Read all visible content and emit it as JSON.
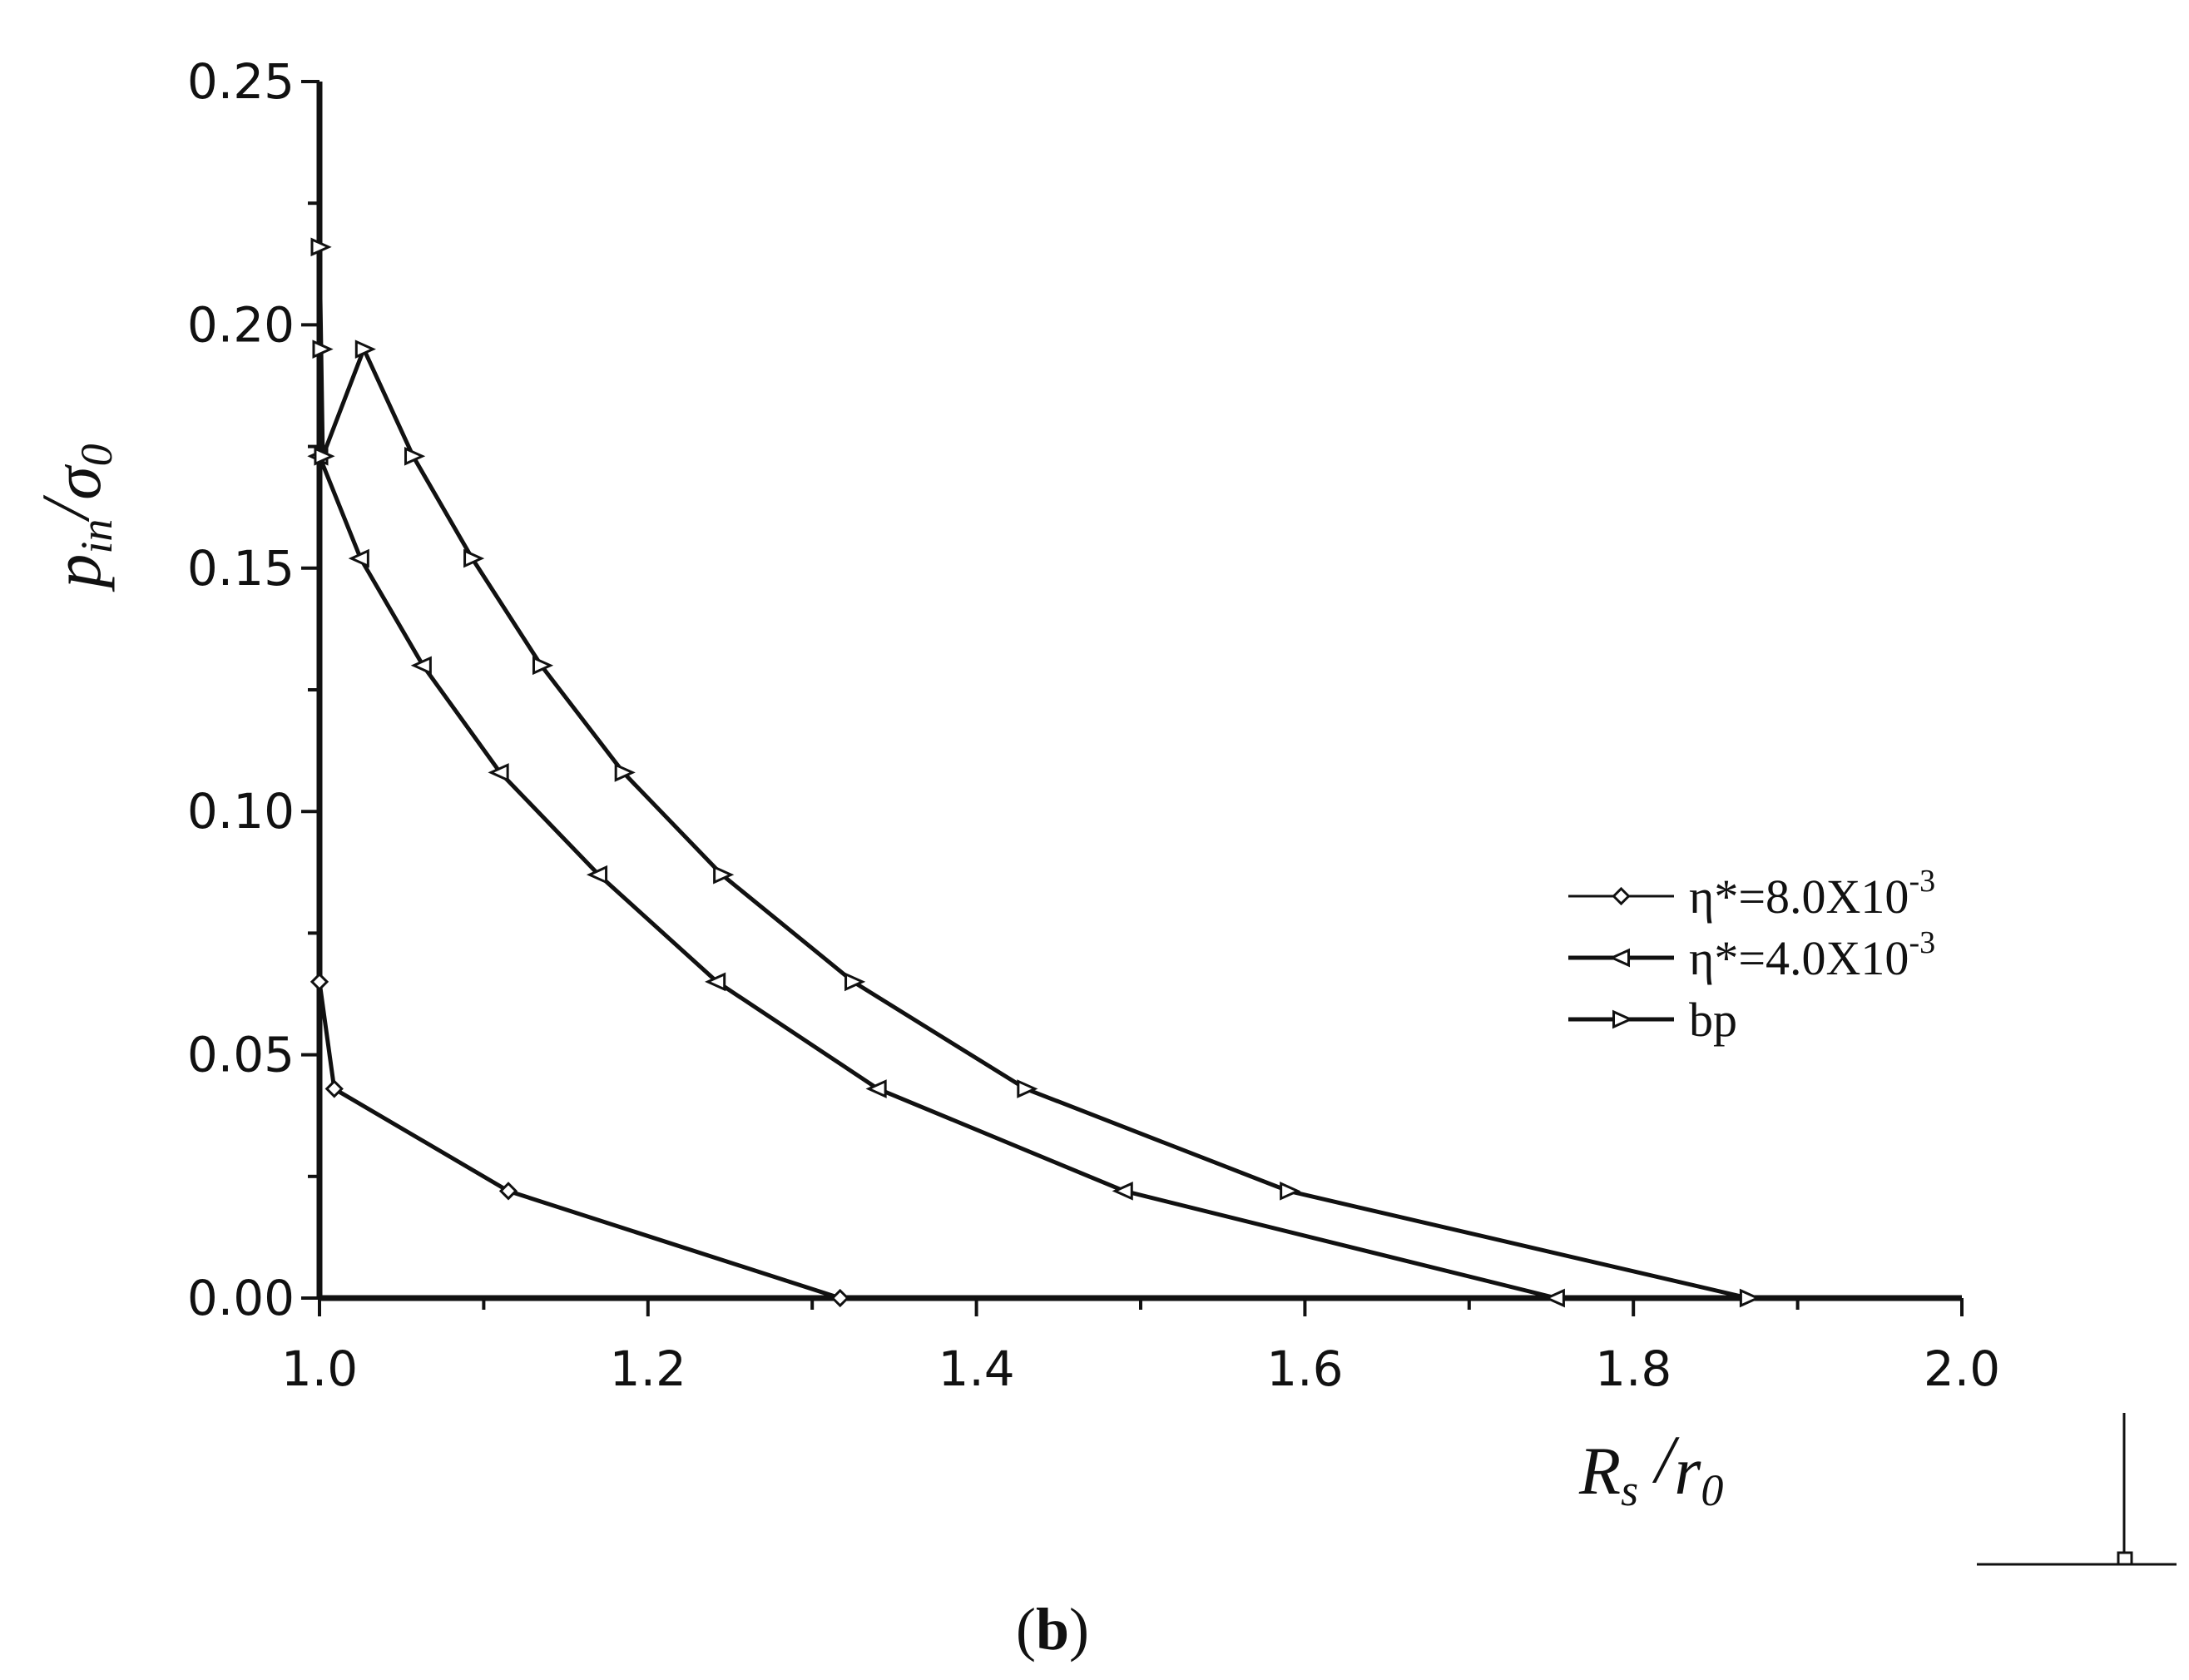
{
  "chart_data": {
    "type": "line",
    "caption": "(b)",
    "xlabel": {
      "main": "R",
      "main_sub": "s",
      "sep": " /",
      "den": "r",
      "den_sub": "0"
    },
    "ylabel": {
      "main": "p",
      "main_sub": "in",
      "sep": "/",
      "den": "σ",
      "den_sub": "0"
    },
    "xlim": [
      1.0,
      2.0
    ],
    "ylim": [
      0.0,
      0.25
    ],
    "x_ticks": [
      "1.0",
      "1.2",
      "1.4",
      "1.6",
      "1.8",
      "2.0"
    ],
    "y_ticks": [
      "0.00",
      "0.05",
      "0.10",
      "0.15",
      "0.20",
      "0.25"
    ],
    "grid": false,
    "legend_position": "right",
    "series": [
      {
        "name": "η*=8.0X10",
        "name_exp": "-3",
        "marker": "diamond",
        "points": [
          [
            1.0,
            0.065
          ],
          [
            1.009,
            0.043
          ],
          [
            1.115,
            0.022
          ],
          [
            1.317,
            0.0
          ]
        ]
      },
      {
        "name": "η*=4.0X10",
        "name_exp": "-3",
        "marker": "triangle-left",
        "points": [
          [
            1.0,
            0.173
          ],
          [
            1.025,
            0.152
          ],
          [
            1.063,
            0.13
          ],
          [
            1.11,
            0.108
          ],
          [
            1.17,
            0.087
          ],
          [
            1.242,
            0.065
          ],
          [
            1.34,
            0.043
          ],
          [
            1.49,
            0.022
          ],
          [
            1.753,
            0.0
          ]
        ]
      },
      {
        "name": "bp",
        "name_exp": "",
        "marker": "triangle-right",
        "points": [
          [
            1.0,
            0.216
          ],
          [
            1.001,
            0.195
          ],
          [
            1.002,
            0.173
          ],
          [
            1.027,
            0.195
          ],
          [
            1.057,
            0.173
          ],
          [
            1.093,
            0.152
          ],
          [
            1.135,
            0.13
          ],
          [
            1.185,
            0.108
          ],
          [
            1.245,
            0.087
          ],
          [
            1.325,
            0.065
          ],
          [
            1.43,
            0.043
          ],
          [
            1.59,
            0.022
          ],
          [
            1.87,
            0.0
          ]
        ]
      }
    ]
  }
}
